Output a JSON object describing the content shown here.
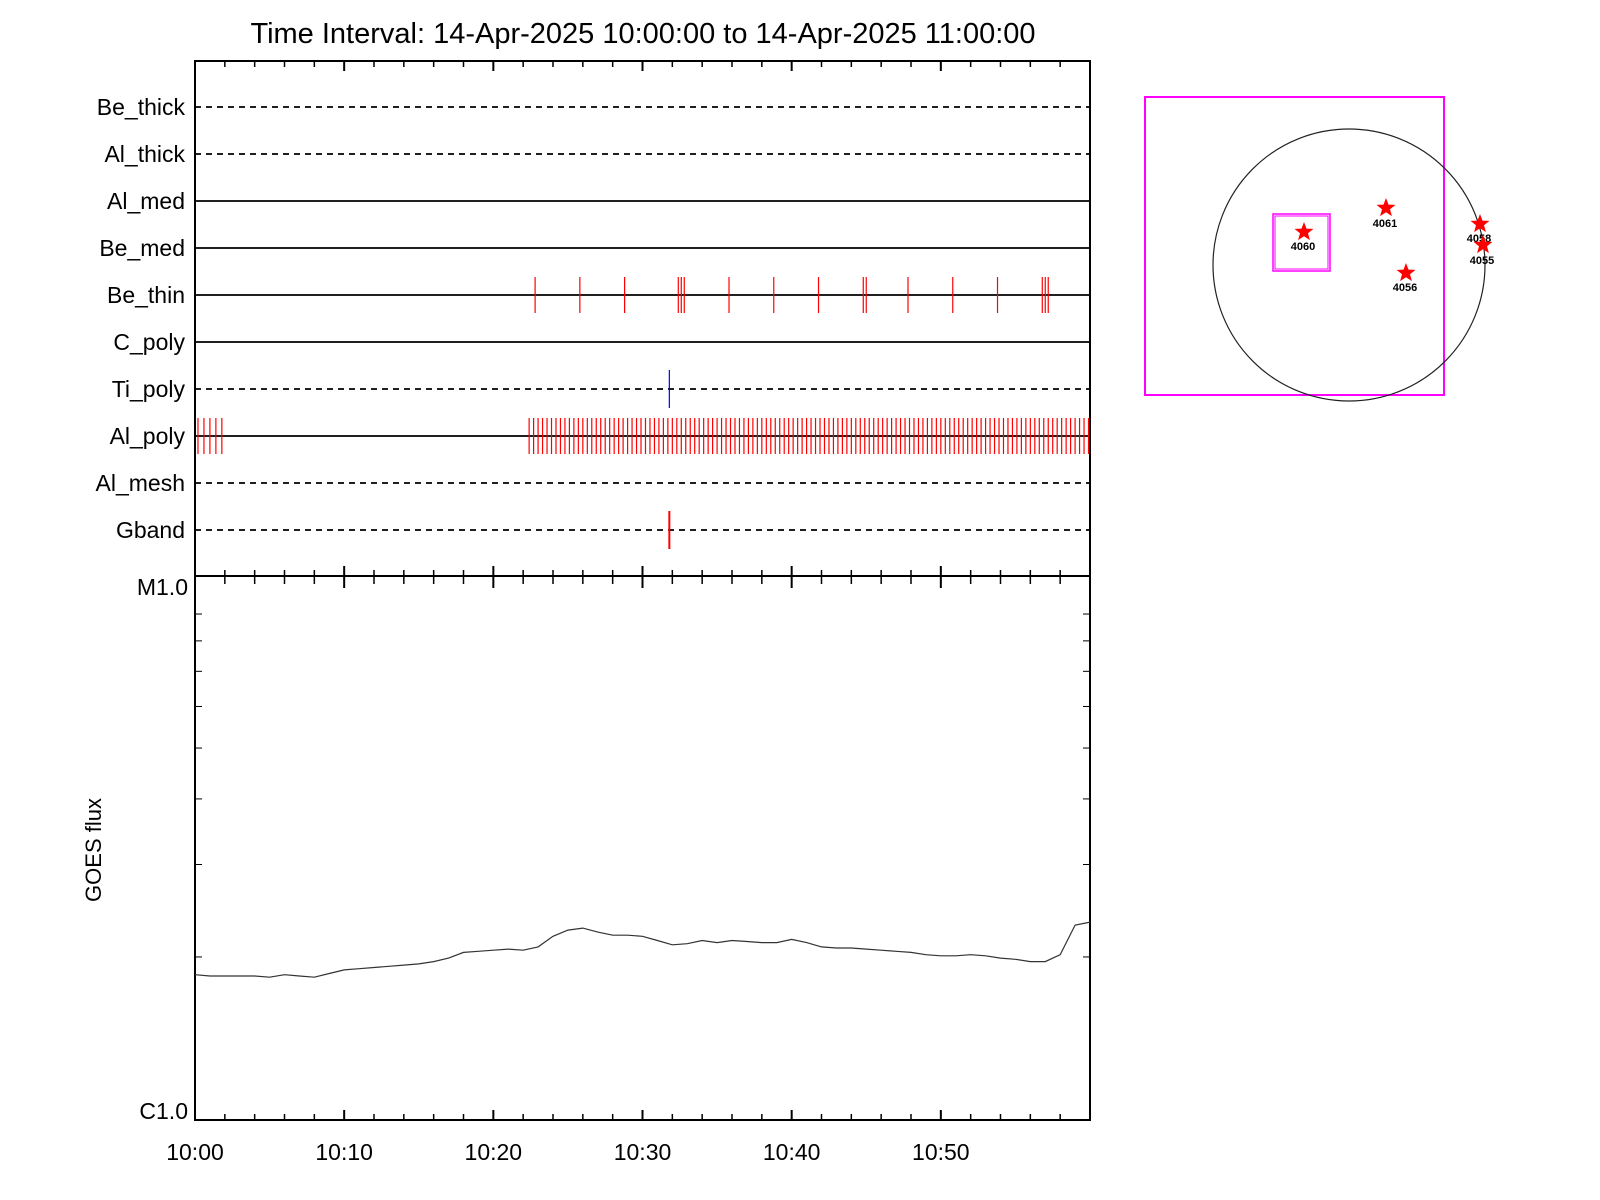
{
  "chart_data": [
    {
      "type": "timeline",
      "title": "Time Interval: 14-Apr-2025 10:00:00 to 14-Apr-2025 11:00:00",
      "x_range": [
        "10:00",
        "11:00"
      ],
      "tick_labels": [
        "10:00",
        "10:10",
        "10:20",
        "10:30",
        "10:40",
        "10:50"
      ],
      "channels": [
        {
          "name": "Be_thick",
          "style": "dashed",
          "events": []
        },
        {
          "name": "Al_thick",
          "style": "dashed",
          "events": []
        },
        {
          "name": "Al_med",
          "style": "solid",
          "events": []
        },
        {
          "name": "Be_med",
          "style": "solid",
          "events": []
        },
        {
          "name": "Be_thin",
          "style": "solid",
          "color": "#ff0000",
          "events": [
            22.8,
            25.8,
            28.8,
            32.4,
            32.6,
            32.8,
            35.8,
            38.8,
            41.8,
            44.8,
            45.0,
            47.8,
            50.8,
            53.8,
            56.8,
            57.0,
            57.2
          ]
        },
        {
          "name": "C_poly",
          "style": "solid",
          "events": []
        },
        {
          "name": "Ti_poly",
          "style": "dashed",
          "color": "#0000ff",
          "events": [
            31.8
          ]
        },
        {
          "name": "Al_poly",
          "style": "solid",
          "color": "#ff0000",
          "events": [
            0.2,
            0.6,
            1.0,
            1.4,
            1.8,
            22.4,
            22.7,
            23.0,
            23.3,
            23.6,
            23.9,
            24.2,
            24.5,
            24.8,
            25.1,
            25.4,
            25.7,
            26.0,
            26.3,
            26.6,
            26.9,
            27.2,
            27.5,
            27.8,
            28.1,
            28.4,
            28.7,
            29.0,
            29.3,
            29.6,
            29.9,
            30.2,
            30.5,
            30.8,
            31.1,
            31.4,
            31.7,
            32.0,
            32.3,
            32.6,
            32.9,
            33.2,
            33.5,
            33.8,
            34.1,
            34.4,
            34.7,
            35.0,
            35.3,
            35.6,
            35.9,
            36.2,
            36.5,
            36.8,
            37.1,
            37.4,
            37.7,
            38.0,
            38.3,
            38.6,
            38.9,
            39.2,
            39.5,
            39.8,
            40.1,
            40.4,
            40.7,
            41.0,
            41.3,
            41.6,
            41.9,
            42.2,
            42.5,
            42.8,
            43.1,
            43.4,
            43.7,
            44.0,
            44.3,
            44.6,
            44.9,
            45.2,
            45.5,
            45.8,
            46.1,
            46.4,
            46.7,
            47.0,
            47.3,
            47.6,
            47.9,
            48.2,
            48.5,
            48.8,
            49.1,
            49.4,
            49.7,
            50.0,
            50.3,
            50.6,
            50.9,
            51.2,
            51.5,
            51.8,
            52.1,
            52.4,
            52.7,
            53.0,
            53.3,
            53.6,
            53.9,
            54.2,
            54.5,
            54.8,
            55.1,
            55.4,
            55.7,
            56.0,
            56.3,
            56.6,
            56.9,
            57.2,
            57.5,
            57.8,
            58.1,
            58.4,
            58.7,
            59.0,
            59.3,
            59.6,
            59.9
          ]
        },
        {
          "name": "Al_mesh",
          "style": "dashed",
          "events": []
        },
        {
          "name": "Gband",
          "style": "dashed",
          "color": "#ff0000",
          "events": [
            31.8
          ]
        }
      ]
    },
    {
      "type": "line",
      "ylabel": "GOES flux",
      "y_scale": "log",
      "y_tick_labels": [
        "M1.0",
        "C1.0"
      ],
      "ylim": [
        1e-06,
        1e-05
      ],
      "x_range": [
        "10:00",
        "11:00"
      ],
      "tick_labels": [
        "10:00",
        "10:10",
        "10:20",
        "10:30",
        "10:40",
        "10:50"
      ],
      "series": [
        {
          "x": [
            0,
            1,
            2,
            3,
            4,
            5,
            6,
            7,
            8,
            9,
            10,
            11,
            12,
            13,
            14,
            15,
            16,
            17,
            18,
            19,
            20,
            21,
            22,
            23,
            24,
            25,
            26,
            27,
            28,
            29,
            30,
            31,
            32,
            33,
            34,
            35,
            36,
            37,
            38,
            39,
            40,
            41,
            42,
            43,
            44,
            45,
            46,
            47,
            48,
            49,
            50,
            51,
            52,
            53,
            54,
            55,
            56,
            57,
            58,
            59,
            60
          ],
          "y": [
            1.85e-06,
            1.84e-06,
            1.84e-06,
            1.84e-06,
            1.84e-06,
            1.83e-06,
            1.85e-06,
            1.84e-06,
            1.83e-06,
            1.86e-06,
            1.89e-06,
            1.9e-06,
            1.91e-06,
            1.92e-06,
            1.93e-06,
            1.94e-06,
            1.96e-06,
            1.99e-06,
            2.04e-06,
            2.05e-06,
            2.06e-06,
            2.07e-06,
            2.06e-06,
            2.09e-06,
            2.19e-06,
            2.25e-06,
            2.27e-06,
            2.23e-06,
            2.2e-06,
            2.2e-06,
            2.19e-06,
            2.15e-06,
            2.11e-06,
            2.12e-06,
            2.15e-06,
            2.13e-06,
            2.15e-06,
            2.14e-06,
            2.13e-06,
            2.13e-06,
            2.16e-06,
            2.13e-06,
            2.09e-06,
            2.08e-06,
            2.08e-06,
            2.07e-06,
            2.06e-06,
            2.05e-06,
            2.04e-06,
            2.02e-06,
            2.01e-06,
            2.01e-06,
            2.02e-06,
            2.01e-06,
            1.99e-06,
            1.98e-06,
            1.96e-06,
            1.96e-06,
            2.02e-06,
            2.3e-06,
            2.33e-06
          ]
        }
      ]
    },
    {
      "type": "map",
      "active_regions": [
        {
          "label": "4060",
          "in_box": true
        },
        {
          "label": "4061"
        },
        {
          "label": "4056"
        },
        {
          "label": "4058"
        },
        {
          "label": "4055"
        }
      ]
    }
  ]
}
